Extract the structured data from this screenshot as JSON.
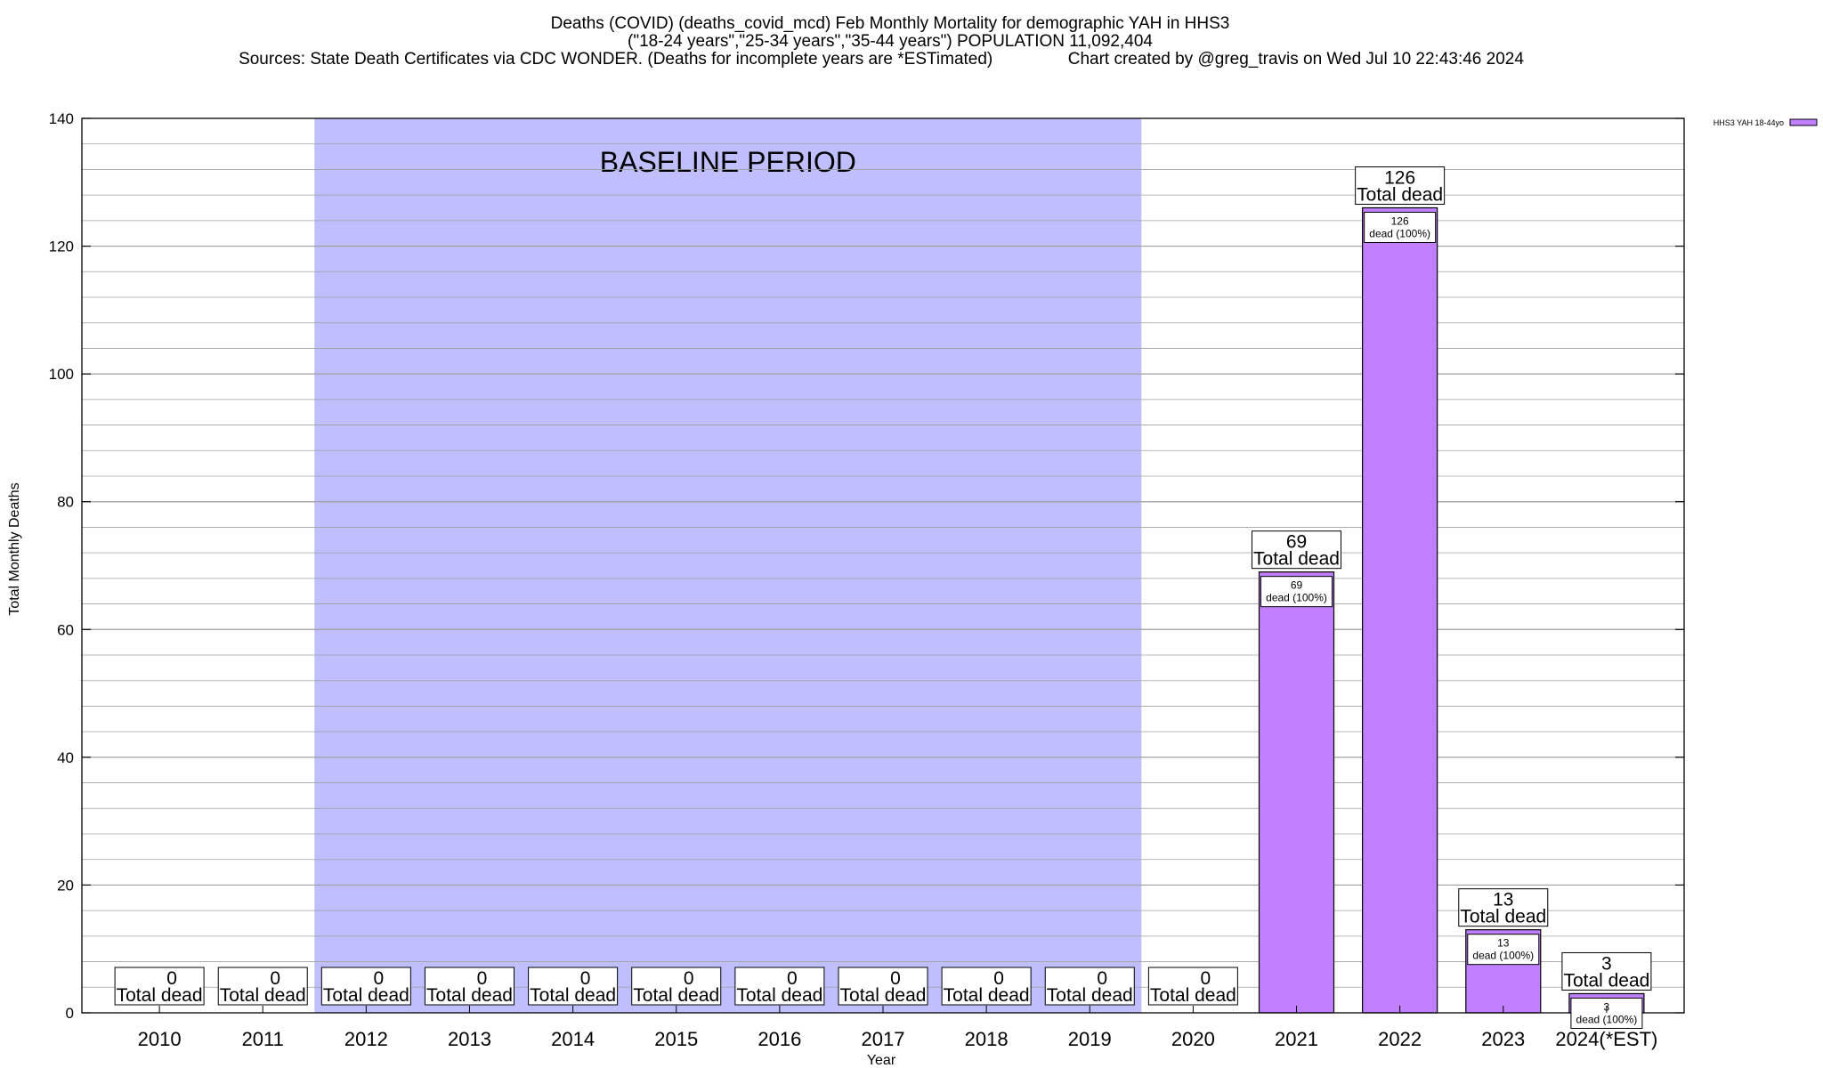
{
  "header": {
    "title_line1": "Deaths (COVID) (deaths_covid_mcd) Feb Monthly Mortality for demographic YAH in HHS3",
    "title_line2": "(\"18-24 years\",\"25-34 years\",\"35-44 years\") POPULATION 11,092,404",
    "title_line3": "Sources: State Death Certificates via CDC WONDER. (Deaths for incomplete years are *ESTimated)                Chart created by @greg_travis on Wed Jul 10 22:43:46 2024"
  },
  "chart_data": {
    "type": "bar",
    "title": "Deaths (COVID) (deaths_covid_mcd) Feb Monthly Mortality for demographic YAH in HHS3",
    "xlabel": "Year",
    "ylabel": "Total Monthly Deaths",
    "ylim": [
      0,
      140
    ],
    "y_ticks": [
      0,
      20,
      40,
      60,
      80,
      100,
      120,
      140
    ],
    "grid": true,
    "legend_position": "top-right",
    "categories": [
      "2010",
      "2011",
      "2012",
      "2013",
      "2014",
      "2015",
      "2016",
      "2017",
      "2018",
      "2019",
      "2020",
      "2021",
      "2022",
      "2023",
      "2024(*EST)"
    ],
    "series": [
      {
        "name": "HHS3 YAH 18-44yo",
        "values": [
          0,
          0,
          0,
          0,
          0,
          0,
          0,
          0,
          0,
          0,
          0,
          69,
          126,
          13,
          3
        ]
      }
    ],
    "total_label_word": "Total dead",
    "inner_label_word": "dead (100%)",
    "baseline_period": {
      "label": "BASELINE PERIOD",
      "start_category": "2012",
      "end_category": "2019"
    }
  },
  "colors": {
    "bar_fill": "#c080ff",
    "baseline_fill": "#bfbffe",
    "grid": "#a0a0a0",
    "axis": "#000000"
  }
}
